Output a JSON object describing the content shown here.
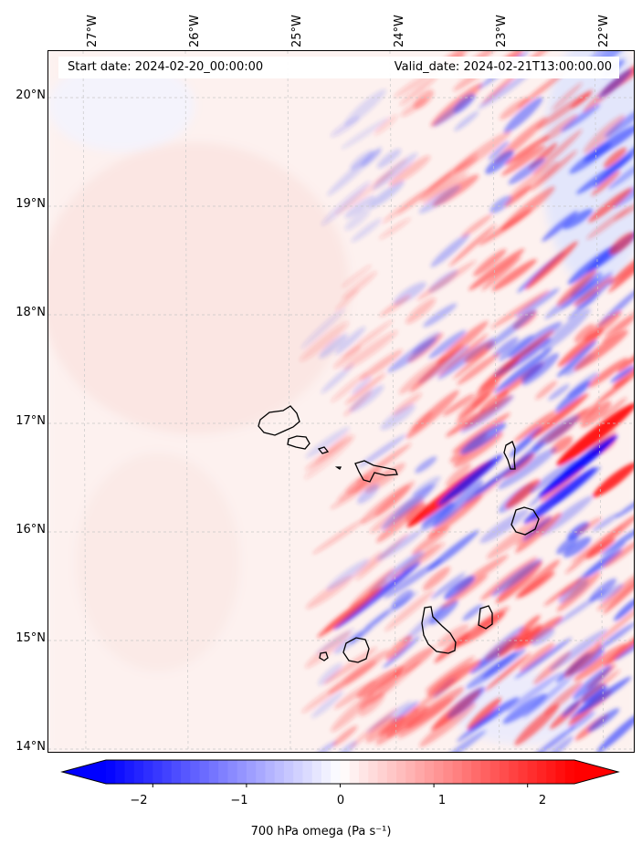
{
  "map": {
    "start_date": "Start date: 2024-02-20_00:00:00",
    "valid_date": "Valid_date: 2024-02-21T13:00:00.00",
    "lon_labels": [
      "27°W",
      "26°W",
      "25°W",
      "24°W",
      "23°W",
      "22°W"
    ],
    "lat_labels": [
      "20°N",
      "19°N",
      "18°N",
      "17°N",
      "16°N",
      "15°N",
      "14°N"
    ],
    "lon_range": [
      -27.3,
      -21.8
    ],
    "lat_range": [
      13.95,
      20.45
    ],
    "gridlines": true,
    "variable": "700 hPa omega"
  },
  "colorbar": {
    "label": "700 hPa omega (Pa s⁻¹)",
    "ticks": [
      "−2",
      "−1",
      "0",
      "1",
      "2"
    ],
    "tick_values": [
      -2,
      -1,
      0,
      1,
      2
    ],
    "range": [
      -2.5,
      2.5
    ],
    "colors": {
      "negative": "#0000ff",
      "zero": "#ffffff",
      "positive": "#ff0000"
    },
    "extend": "both"
  },
  "islands": [
    "Santo Antão",
    "São Vicente",
    "Santa Luzia",
    "São Nicolau",
    "Sal",
    "Boa Vista",
    "Maio",
    "Santiago",
    "Fogo",
    "Brava"
  ]
}
